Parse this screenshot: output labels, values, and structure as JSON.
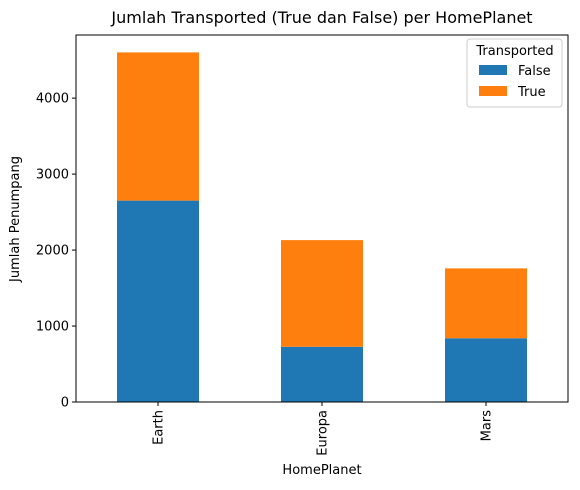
{
  "chart_data": {
    "type": "bar",
    "stacked": true,
    "title": "Jumlah Transported (True dan False) per HomePlanet",
    "xlabel": "HomePlanet",
    "ylabel": "Jumlah Penumpang",
    "categories": [
      "Earth",
      "Europa",
      "Mars"
    ],
    "series": [
      {
        "name": "False",
        "values": [
          2651,
          727,
          839
        ],
        "color": "#1f77b4"
      },
      {
        "name": "True",
        "values": [
          1951,
          1404,
          920
        ],
        "color": "#ff7f0e"
      }
    ],
    "ylim": [
      0,
      4831
    ],
    "yticks": [
      0,
      1000,
      2000,
      3000,
      4000
    ],
    "ytick_labels": [
      "0",
      "1000",
      "2000",
      "3000",
      "4000"
    ],
    "legend": {
      "title": "Transported",
      "placement": "top-right"
    },
    "grid": false
  }
}
